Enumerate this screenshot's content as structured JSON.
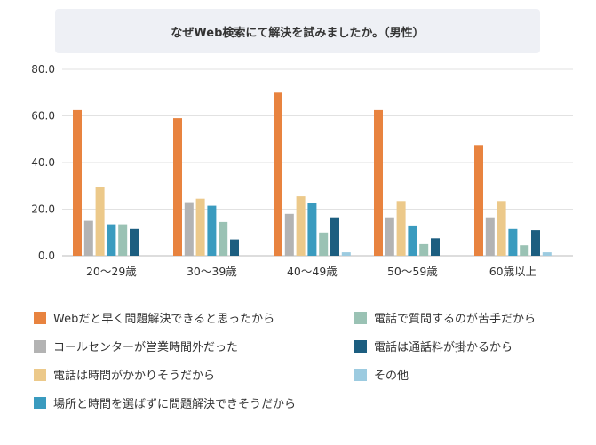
{
  "chart_data": {
    "type": "bar",
    "title": "なぜWeb検索にて解決を試みましたか。（男性）",
    "categories": [
      "20～29歳",
      "30～39歳",
      "40～49歳",
      "50～59歳",
      "60歳以上"
    ],
    "ylim": [
      0,
      80
    ],
    "yticks": [
      "0.0",
      "20.0",
      "40.0",
      "60.0",
      "80.0"
    ],
    "ytick_values": [
      0,
      20,
      40,
      60,
      80
    ],
    "grid": true,
    "legend_position": "bottom",
    "series": [
      {
        "name": "Webだと早く問題解決できると思ったから",
        "color": "#e8833f",
        "values": [
          62.5,
          59.0,
          70.0,
          62.5,
          47.5
        ]
      },
      {
        "name": "コールセンターが営業時間外だった",
        "color": "#b3b3b3",
        "values": [
          15.0,
          23.0,
          18.0,
          16.5,
          16.5
        ]
      },
      {
        "name": "電話は時間がかかりそうだから",
        "color": "#ecc98a",
        "values": [
          29.5,
          24.5,
          25.5,
          23.5,
          23.5
        ]
      },
      {
        "name": "場所と時間を選ばずに問題解決できそうだから",
        "color": "#3a9bbf",
        "values": [
          13.5,
          21.5,
          22.5,
          13.0,
          11.5
        ]
      },
      {
        "name": "電話で質問するのが苦手だから",
        "color": "#9ac2b4",
        "values": [
          13.5,
          14.5,
          10.0,
          5.0,
          4.5
        ]
      },
      {
        "name": "電話は通話料が掛かるから",
        "color": "#1c5e80",
        "values": [
          11.5,
          7.0,
          16.5,
          7.5,
          11.0
        ]
      },
      {
        "name": "その他",
        "color": "#9ccbe0",
        "values": [
          0,
          0,
          1.5,
          0,
          1.5
        ]
      }
    ]
  }
}
